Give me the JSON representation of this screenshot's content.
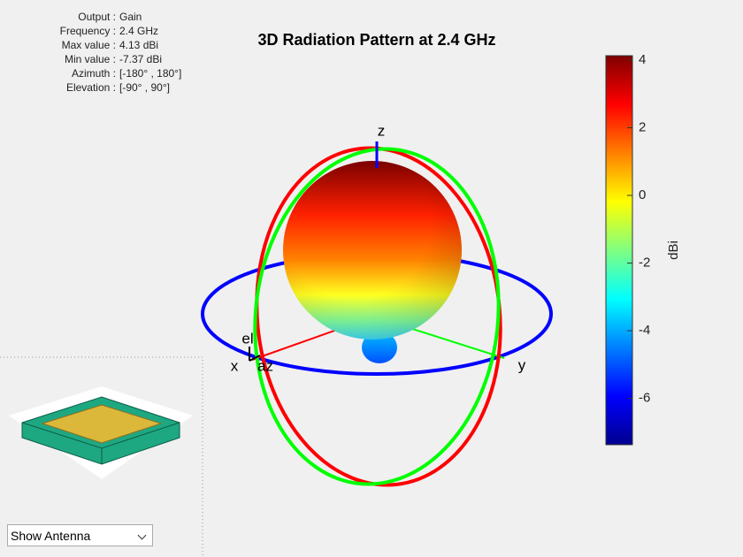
{
  "chart_data": {
    "type": "radiation-pattern-3d",
    "title": "3D Radiation Pattern at 2.4 GHz",
    "info": [
      {
        "label": "Output :",
        "value": "Gain"
      },
      {
        "label": "Frequency :",
        "value": "2.4 GHz"
      },
      {
        "label": "Max value :",
        "value": "4.13 dBi"
      },
      {
        "label": "Min value :",
        "value": "-7.37 dBi"
      },
      {
        "label": "Azimuth :",
        "value": "[-180° , 180°]"
      },
      {
        "label": "Elevation :",
        "value": "[-90° , 90°]"
      }
    ],
    "axis_labels": {
      "x": "x",
      "y": "y",
      "z": "z",
      "az": "az",
      "el": "el"
    },
    "colorbar": {
      "label": "dBi",
      "clim": [
        -7.37,
        4.13
      ],
      "ticks": [
        -6,
        -4,
        -2,
        0,
        2,
        4
      ],
      "colormap": "jet"
    },
    "dropdown": "Show Antenna"
  }
}
